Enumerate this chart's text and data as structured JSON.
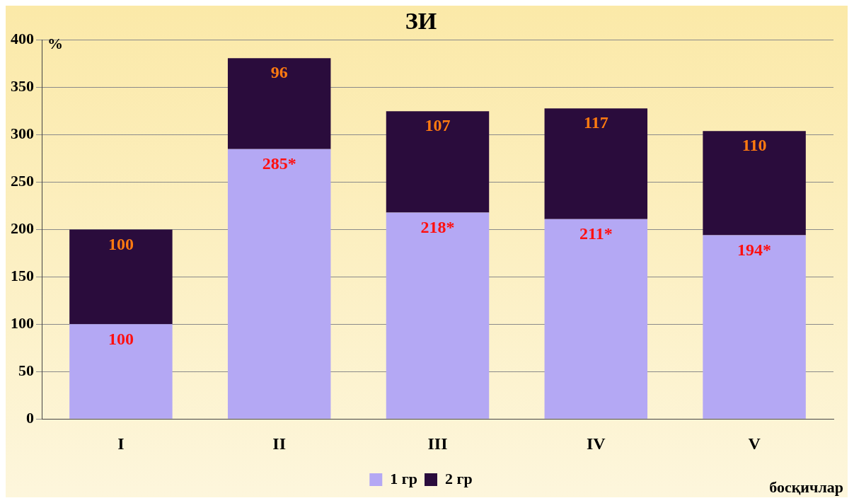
{
  "chart_data": {
    "type": "bar",
    "title": "ЗИ",
    "ylabel": "%",
    "xlabel": "босқичлар",
    "categories": [
      "I",
      "II",
      "III",
      "IV",
      "V"
    ],
    "stacked": true,
    "series": [
      {
        "name": "1 гр",
        "color": "#b4a8f4",
        "values": [
          100,
          285,
          218,
          211,
          194
        ],
        "value_labels": [
          "100",
          "285*",
          "218*",
          "211*",
          "194*"
        ]
      },
      {
        "name": "2 гр",
        "color": "#2a0c3c",
        "values": [
          100,
          96,
          107,
          117,
          110
        ],
        "value_labels": [
          "100",
          "96",
          "107",
          "117",
          "110"
        ]
      }
    ],
    "ylim": [
      0,
      400
    ],
    "yticks": [
      0,
      50,
      100,
      150,
      200,
      250,
      300,
      350,
      400
    ],
    "grid": "y",
    "legend": "bottom"
  }
}
